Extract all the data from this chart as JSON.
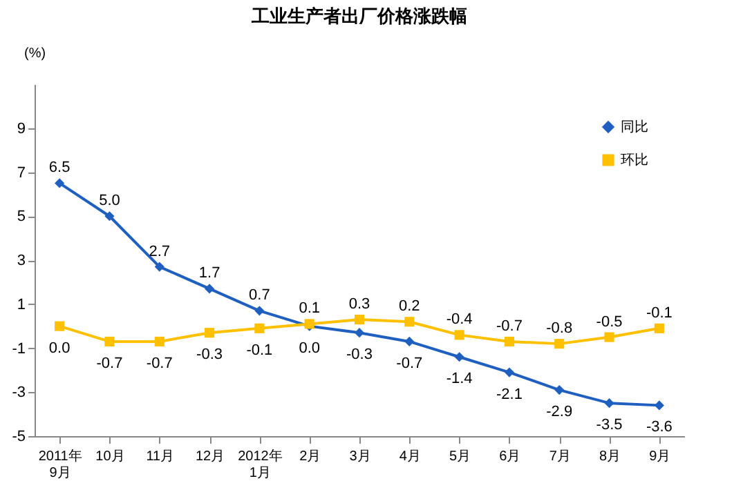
{
  "chart_data": {
    "type": "line",
    "title": "工业生产者出厂价格涨跌幅",
    "ylabel": "(%)",
    "categories": [
      "2011年\n9月",
      "10月",
      "11月",
      "12月",
      "2012年\n1月",
      "2月",
      "3月",
      "4月",
      "5月",
      "6月",
      "7月",
      "8月",
      "9月"
    ],
    "series": [
      {
        "name": "同比",
        "color": "#1f5fbf",
        "marker": "diamond",
        "values": [
          6.5,
          5.0,
          2.7,
          1.7,
          0.7,
          0.0,
          -0.3,
          -0.7,
          -1.4,
          -2.1,
          -2.9,
          -3.5,
          -3.6
        ],
        "value_labels": [
          "6.5",
          "5.0",
          "2.7",
          "1.7",
          "0.7",
          "0.0",
          "-0.3",
          "-0.7",
          "-1.4",
          "-2.1",
          "-2.9",
          "-3.5",
          "-3.6"
        ]
      },
      {
        "name": "环比",
        "color": "#ffc000",
        "marker": "square",
        "values": [
          0.0,
          -0.7,
          -0.7,
          -0.3,
          -0.1,
          0.1,
          0.3,
          0.2,
          -0.4,
          -0.7,
          -0.8,
          -0.5,
          -0.1
        ],
        "value_labels": [
          "0.0",
          "-0.7",
          "-0.7",
          "-0.3",
          "-0.1",
          "0.1",
          "0.3",
          "0.2",
          "-0.4",
          "-0.7",
          "-0.8",
          "-0.5",
          "-0.1"
        ]
      }
    ],
    "ylim": [
      -5,
      11
    ],
    "yticks": [
      -5,
      -3,
      -1,
      1,
      3,
      5,
      7,
      9
    ],
    "grid": false,
    "legend": "top right"
  }
}
